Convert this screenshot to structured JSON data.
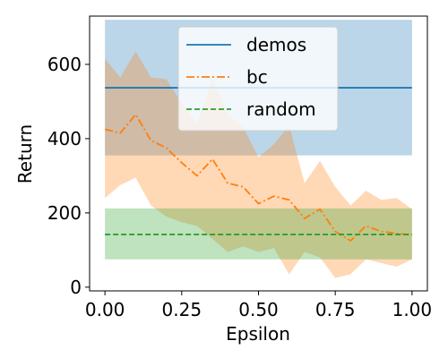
{
  "chart_data": {
    "type": "line",
    "title": "",
    "xlabel": "Epsilon",
    "ylabel": "Return",
    "xlim": [
      -0.05,
      1.05
    ],
    "ylim": [
      -10,
      730
    ],
    "xticks": [
      0.0,
      0.25,
      0.5,
      0.75,
      1.0
    ],
    "xtick_labels": [
      "0.00",
      "0.25",
      "0.50",
      "0.75",
      "1.00"
    ],
    "yticks": [
      0,
      200,
      400,
      600
    ],
    "ytick_labels": [
      "0",
      "200",
      "400",
      "600"
    ],
    "legend_position": "top-center",
    "x": [
      0.0,
      0.05,
      0.1,
      0.15,
      0.2,
      0.25,
      0.3,
      0.35,
      0.4,
      0.45,
      0.5,
      0.55,
      0.6,
      0.65,
      0.7,
      0.75,
      0.8,
      0.85,
      0.9,
      0.95,
      1.0
    ],
    "series": [
      {
        "name": "demos",
        "style": "solid",
        "color": "#1f77b4",
        "fill_color": "#1f77b4",
        "x": [
          0.0,
          1.0
        ],
        "values": [
          537,
          537
        ],
        "band_low": [
          355,
          355
        ],
        "band_high": [
          720,
          720
        ]
      },
      {
        "name": "bc",
        "style": "dashdot",
        "color": "#ff7f0e",
        "fill_color": "#ff7f0e",
        "values": [
          425,
          415,
          465,
          395,
          375,
          335,
          300,
          345,
          280,
          270,
          225,
          245,
          235,
          185,
          210,
          150,
          125,
          165,
          150,
          145,
          140
        ],
        "band_low": [
          240,
          275,
          295,
          220,
          190,
          175,
          165,
          130,
          95,
          110,
          95,
          105,
          35,
          95,
          80,
          25,
          35,
          75,
          65,
          55,
          75
        ],
        "band_high": [
          615,
          565,
          635,
          565,
          560,
          495,
          440,
          560,
          465,
          430,
          350,
          385,
          435,
          280,
          340,
          270,
          220,
          260,
          235,
          240,
          210
        ]
      },
      {
        "name": "random",
        "style": "dashed",
        "color": "#2ca02c",
        "fill_color": "#2ca02c",
        "x": [
          0.0,
          1.0
        ],
        "values": [
          142,
          142
        ],
        "band_low": [
          75,
          75
        ],
        "band_high": [
          212,
          212
        ]
      }
    ]
  }
}
